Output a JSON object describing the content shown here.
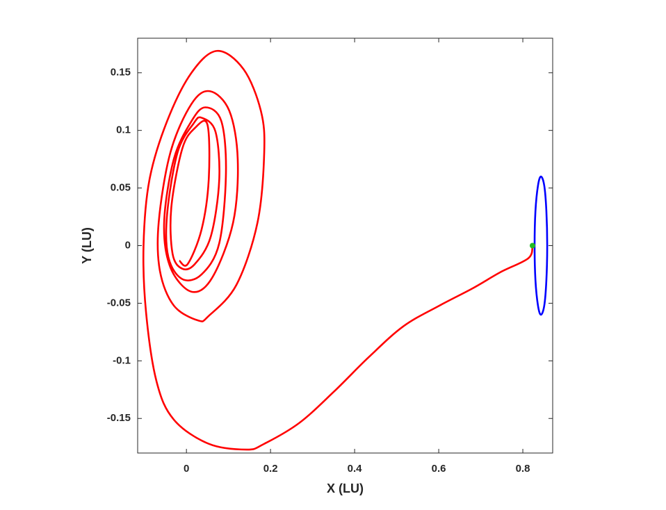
{
  "chart_data": {
    "type": "line",
    "x_label": "X (LU)",
    "y_label": "Y (LU)",
    "xlim": [
      -0.116,
      0.871
    ],
    "ylim": [
      -0.18,
      0.18
    ],
    "xticks": [
      0,
      0.2,
      0.4,
      0.6,
      0.8
    ],
    "yticks": [
      -0.15,
      -0.1,
      -0.05,
      0,
      0.05,
      0.1,
      0.15
    ],
    "grid": false,
    "series": [
      {
        "color": "#ff0000",
        "mode": "line",
        "x": [
          0.823,
          0.813,
          0.747,
          0.681,
          0.602,
          0.516,
          0.433,
          0.35,
          0.268,
          0.185,
          0.144,
          0.053,
          -0.03,
          -0.071,
          -0.096,
          -0.102,
          -0.088,
          -0.046,
          0.012,
          0.073,
          0.136,
          0.177,
          0.185,
          0.169,
          0.119,
          0.053,
          0.028,
          -0.03,
          -0.063,
          -0.066,
          -0.038,
          0.012,
          0.056,
          0.102,
          0.122,
          0.111,
          0.061,
          0.012,
          -0.038,
          -0.053,
          -0.03,
          0.012,
          0.045,
          0.083,
          0.094,
          0.078,
          0.036,
          -0.01,
          -0.043,
          -0.046,
          -0.021,
          0.017,
          0.036,
          0.069,
          0.078,
          0.058,
          0.02,
          -0.01,
          -0.033,
          -0.036,
          -0.01,
          0.02,
          0.05,
          0.053,
          0.036,
          0.003,
          -0.017
        ],
        "y": [
          0,
          -0.011,
          -0.023,
          -0.037,
          -0.052,
          -0.07,
          -0.097,
          -0.127,
          -0.154,
          -0.172,
          -0.177,
          -0.172,
          -0.151,
          -0.118,
          -0.058,
          0,
          0.057,
          0.108,
          0.15,
          0.169,
          0.153,
          0.117,
          0.081,
          0.02,
          -0.034,
          -0.061,
          -0.065,
          -0.052,
          -0.022,
          0.02,
          0.081,
          0.123,
          0.134,
          0.117,
          0.075,
          0.02,
          -0.028,
          -0.04,
          -0.019,
          0.02,
          0.075,
          0.108,
          0.12,
          0.108,
          0.063,
          0.002,
          -0.025,
          -0.029,
          -0.01,
          0.027,
          0.081,
          0.106,
          0.111,
          0.099,
          0.057,
          0.008,
          -0.016,
          -0.02,
          -0.007,
          0.033,
          0.084,
          0.102,
          0.105,
          0.057,
          0.014,
          -0.016,
          -0.013
        ]
      },
      {
        "color": "#0000ff",
        "mode": "closed",
        "x": [
          0.858,
          0.856,
          0.851,
          0.843,
          0.836,
          0.83,
          0.828,
          0.83,
          0.836,
          0.843,
          0.851,
          0.856
        ],
        "y": [
          0,
          0.03,
          0.052,
          0.06,
          0.052,
          0.03,
          0,
          -0.03,
          -0.052,
          -0.06,
          -0.052,
          -0.03
        ]
      },
      {
        "color": "#22bb22",
        "mode": "point",
        "x": [
          0.823
        ],
        "y": [
          0
        ]
      }
    ]
  }
}
